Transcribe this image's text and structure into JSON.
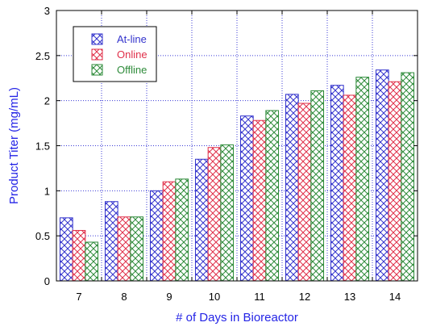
{
  "chart_data": {
    "type": "bar",
    "xlabel": "# of Days in Bioreactor",
    "ylabel": "Product Titer (mg/mL)",
    "categories": [
      "7",
      "8",
      "9",
      "10",
      "11",
      "12",
      "13",
      "14"
    ],
    "ylim": [
      0,
      3
    ],
    "yticks": [
      "0",
      "0.5",
      "1",
      "1.5",
      "2",
      "2.5",
      "3"
    ],
    "grid": true,
    "legend_position": "top-left",
    "series": [
      {
        "name": "At-line",
        "color": "#3333cc",
        "values": [
          0.7,
          0.88,
          1.0,
          1.35,
          1.83,
          2.07,
          2.17,
          2.34
        ]
      },
      {
        "name": "Online",
        "color": "#e0304a",
        "values": [
          0.56,
          0.71,
          1.1,
          1.48,
          1.78,
          1.97,
          2.06,
          2.21
        ]
      },
      {
        "name": "Offline",
        "color": "#2e8b3a",
        "values": [
          0.43,
          0.71,
          1.13,
          1.51,
          1.89,
          2.11,
          2.26,
          2.31
        ]
      }
    ],
    "axis_label_color": "#2424e6",
    "grid_color": "#3b3bd6"
  }
}
